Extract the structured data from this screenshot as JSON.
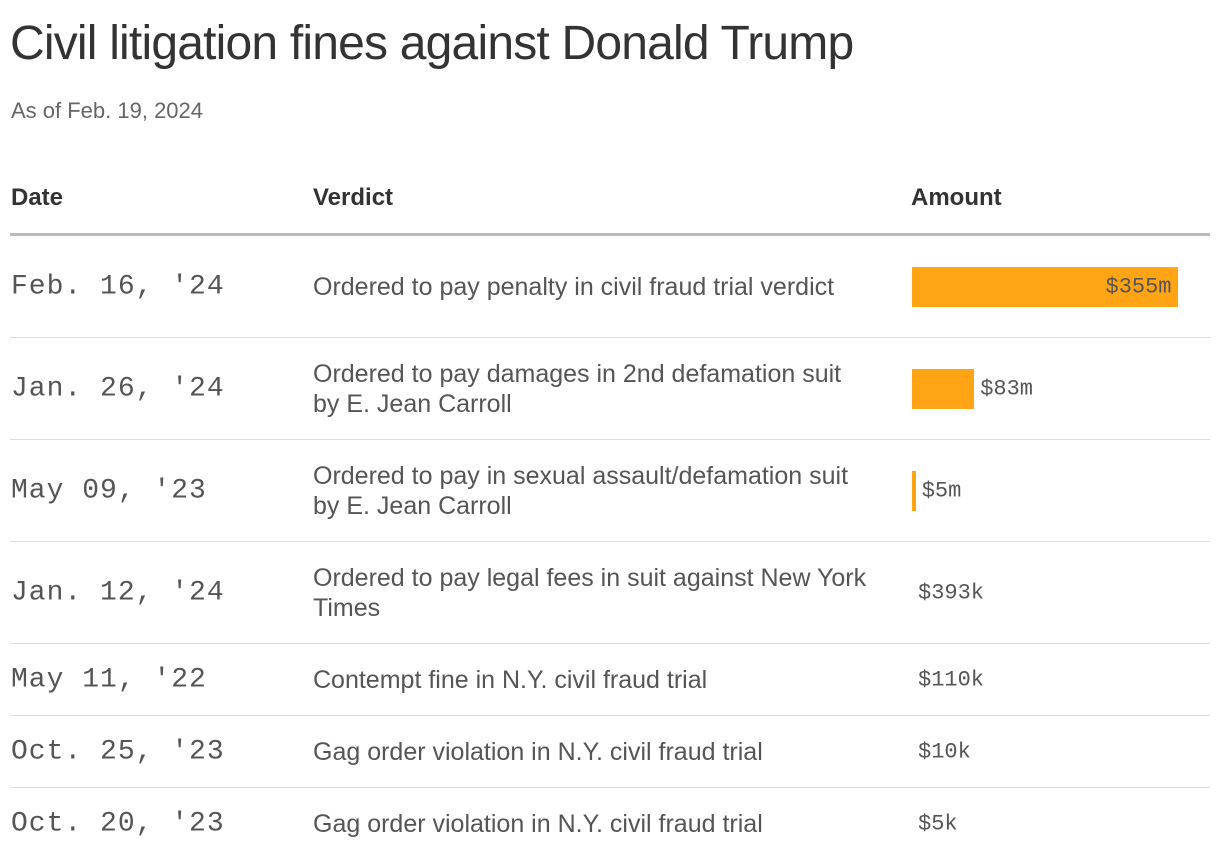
{
  "title": "Civil litigation fines against Donald Trump",
  "subtitle": "As of Feb. 19, 2024",
  "colors": {
    "bar": "#ffa515",
    "text": "#333333",
    "muted": "#555555"
  },
  "chart_data": {
    "type": "table",
    "title": "Civil litigation fines against Donald Trump",
    "subtitle": "As of Feb. 19, 2024",
    "columns": [
      "Date",
      "Verdict",
      "Amount"
    ],
    "rows": [
      {
        "date": "Feb. 16, '24",
        "verdict": "Ordered to pay penalty in civil fraud trial verdict",
        "amount": 355000000,
        "amount_label": "$355m"
      },
      {
        "date": "Jan. 26, '24",
        "verdict": "Ordered to pay damages in 2nd defamation suit by E. Jean Carroll",
        "amount": 83000000,
        "amount_label": "$83m"
      },
      {
        "date": "May 09, '23",
        "verdict": "Ordered to pay in sexual assault/defamation suit by E. Jean Carroll",
        "amount": 5000000,
        "amount_label": "$5m"
      },
      {
        "date": "Jan. 12, '24",
        "verdict": "Ordered to pay legal fees in suit against New York Times",
        "amount": 393000,
        "amount_label": "$393k"
      },
      {
        "date": "May 11, '22",
        "verdict": "Contempt fine in N.Y. civil fraud trial",
        "amount": 110000,
        "amount_label": "$110k"
      },
      {
        "date": "Oct. 25, '23",
        "verdict": "Gag order violation in N.Y. civil fraud trial",
        "amount": 10000,
        "amount_label": "$10k"
      },
      {
        "date": "Oct. 20, '23",
        "verdict": "Gag order violation in N.Y. civil fraud trial",
        "amount": 5000,
        "amount_label": "$5k"
      }
    ]
  }
}
